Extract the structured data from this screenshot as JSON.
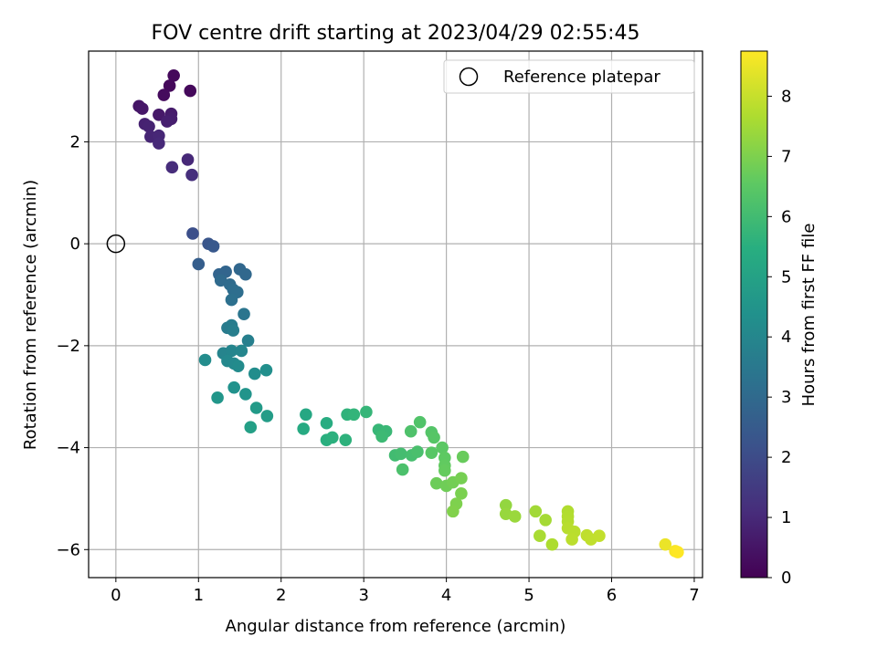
{
  "chart_data": {
    "type": "scatter",
    "title": "FOV centre drift starting at 2023/04/29 02:55:45",
    "xlabel": "Angular distance from reference (arcmin)",
    "ylabel": "Rotation from reference (arcmin)",
    "xlim": [
      -0.33,
      7.1
    ],
    "ylim": [
      -6.55,
      3.78
    ],
    "xticks": [
      0,
      1,
      2,
      3,
      4,
      5,
      6,
      7
    ],
    "xtick_labels": [
      "0",
      "1",
      "2",
      "3",
      "4",
      "5",
      "6",
      "7"
    ],
    "yticks": [
      2,
      0,
      -2,
      -4,
      -6
    ],
    "ytick_labels": [
      "2",
      "0",
      "−2",
      "−4",
      "−6"
    ],
    "grid": true,
    "legend": {
      "position": "upper-right",
      "entries": [
        "Reference platepar"
      ]
    },
    "reference_point": {
      "x": 0,
      "y": 0,
      "label": "Reference platepar"
    },
    "colorbar": {
      "label": "Hours from first FF file",
      "range": [
        0,
        8.75
      ],
      "ticks": [
        0,
        1,
        2,
        3,
        4,
        5,
        6,
        7,
        8
      ],
      "tick_labels": [
        "0",
        "1",
        "2",
        "3",
        "4",
        "5",
        "6",
        "7",
        "8"
      ],
      "colormap": "viridis"
    },
    "points": [
      {
        "x": 0.7,
        "y": 3.3,
        "h": 0.2
      },
      {
        "x": 0.65,
        "y": 3.1,
        "h": 0.2
      },
      {
        "x": 0.9,
        "y": 3.0,
        "h": 0.2
      },
      {
        "x": 0.58,
        "y": 2.92,
        "h": 0.25
      },
      {
        "x": 0.28,
        "y": 2.7,
        "h": 0.5
      },
      {
        "x": 0.32,
        "y": 2.65,
        "h": 0.55
      },
      {
        "x": 0.52,
        "y": 2.53,
        "h": 0.6
      },
      {
        "x": 0.67,
        "y": 2.55,
        "h": 0.65
      },
      {
        "x": 0.67,
        "y": 2.45,
        "h": 0.7
      },
      {
        "x": 0.62,
        "y": 2.4,
        "h": 0.75
      },
      {
        "x": 0.35,
        "y": 2.35,
        "h": 0.8
      },
      {
        "x": 0.4,
        "y": 2.3,
        "h": 0.85
      },
      {
        "x": 0.42,
        "y": 2.1,
        "h": 0.9
      },
      {
        "x": 0.52,
        "y": 2.12,
        "h": 0.95
      },
      {
        "x": 0.52,
        "y": 1.97,
        "h": 1.0
      },
      {
        "x": 0.87,
        "y": 1.65,
        "h": 1.0
      },
      {
        "x": 0.68,
        "y": 1.5,
        "h": 1.1
      },
      {
        "x": 0.92,
        "y": 1.35,
        "h": 1.15
      },
      {
        "x": 0.93,
        "y": 0.2,
        "h": 2.1
      },
      {
        "x": 1.12,
        "y": 0.0,
        "h": 2.3
      },
      {
        "x": 1.18,
        "y": -0.05,
        "h": 2.4
      },
      {
        "x": 1.0,
        "y": -0.4,
        "h": 2.6
      },
      {
        "x": 1.25,
        "y": -0.6,
        "h": 2.8
      },
      {
        "x": 1.33,
        "y": -0.55,
        "h": 2.85
      },
      {
        "x": 1.5,
        "y": -0.5,
        "h": 2.9
      },
      {
        "x": 1.57,
        "y": -0.6,
        "h": 2.95
      },
      {
        "x": 1.27,
        "y": -0.72,
        "h": 3.0
      },
      {
        "x": 1.38,
        "y": -0.8,
        "h": 3.05
      },
      {
        "x": 1.42,
        "y": -0.9,
        "h": 3.1
      },
      {
        "x": 1.47,
        "y": -0.95,
        "h": 3.15
      },
      {
        "x": 1.4,
        "y": -1.1,
        "h": 3.2
      },
      {
        "x": 1.55,
        "y": -1.38,
        "h": 3.4
      },
      {
        "x": 1.35,
        "y": -1.65,
        "h": 3.6
      },
      {
        "x": 1.4,
        "y": -1.6,
        "h": 3.65
      },
      {
        "x": 1.42,
        "y": -1.7,
        "h": 3.7
      },
      {
        "x": 1.6,
        "y": -1.9,
        "h": 3.75
      },
      {
        "x": 1.3,
        "y": -2.15,
        "h": 3.9
      },
      {
        "x": 1.4,
        "y": -2.1,
        "h": 3.95
      },
      {
        "x": 1.52,
        "y": -2.1,
        "h": 4.0
      },
      {
        "x": 1.35,
        "y": -2.3,
        "h": 4.05
      },
      {
        "x": 1.43,
        "y": -2.35,
        "h": 4.1
      },
      {
        "x": 1.48,
        "y": -2.4,
        "h": 4.15
      },
      {
        "x": 1.08,
        "y": -2.28,
        "h": 4.2
      },
      {
        "x": 1.68,
        "y": -2.55,
        "h": 4.25
      },
      {
        "x": 1.82,
        "y": -2.48,
        "h": 4.3
      },
      {
        "x": 1.43,
        "y": -2.82,
        "h": 4.4
      },
      {
        "x": 1.57,
        "y": -2.95,
        "h": 4.5
      },
      {
        "x": 1.23,
        "y": -3.02,
        "h": 4.55
      },
      {
        "x": 1.7,
        "y": -3.22,
        "h": 4.7
      },
      {
        "x": 1.83,
        "y": -3.38,
        "h": 4.8
      },
      {
        "x": 1.63,
        "y": -3.6,
        "h": 4.9
      },
      {
        "x": 2.3,
        "y": -3.35,
        "h": 5.2
      },
      {
        "x": 2.27,
        "y": -3.63,
        "h": 5.3
      },
      {
        "x": 2.55,
        "y": -3.52,
        "h": 5.4
      },
      {
        "x": 2.55,
        "y": -3.85,
        "h": 5.5
      },
      {
        "x": 2.62,
        "y": -3.8,
        "h": 5.55
      },
      {
        "x": 2.78,
        "y": -3.85,
        "h": 5.6
      },
      {
        "x": 2.8,
        "y": -3.35,
        "h": 5.65
      },
      {
        "x": 2.88,
        "y": -3.35,
        "h": 5.7
      },
      {
        "x": 3.03,
        "y": -3.3,
        "h": 5.75
      },
      {
        "x": 3.18,
        "y": -3.65,
        "h": 5.8
      },
      {
        "x": 3.27,
        "y": -3.68,
        "h": 5.85
      },
      {
        "x": 3.22,
        "y": -3.78,
        "h": 5.9
      },
      {
        "x": 3.38,
        "y": -4.15,
        "h": 6.0
      },
      {
        "x": 3.45,
        "y": -4.12,
        "h": 6.05
      },
      {
        "x": 3.58,
        "y": -4.15,
        "h": 6.1
      },
      {
        "x": 3.65,
        "y": -4.08,
        "h": 6.15
      },
      {
        "x": 3.47,
        "y": -4.43,
        "h": 6.2
      },
      {
        "x": 3.57,
        "y": -3.68,
        "h": 6.25
      },
      {
        "x": 3.68,
        "y": -3.5,
        "h": 6.3
      },
      {
        "x": 3.82,
        "y": -3.7,
        "h": 6.35
      },
      {
        "x": 3.85,
        "y": -3.8,
        "h": 6.4
      },
      {
        "x": 3.82,
        "y": -4.1,
        "h": 6.45
      },
      {
        "x": 3.95,
        "y": -4.0,
        "h": 6.5
      },
      {
        "x": 3.98,
        "y": -4.2,
        "h": 6.55
      },
      {
        "x": 3.98,
        "y": -4.35,
        "h": 6.6
      },
      {
        "x": 3.98,
        "y": -4.45,
        "h": 6.65
      },
      {
        "x": 4.2,
        "y": -4.18,
        "h": 6.7
      },
      {
        "x": 3.88,
        "y": -4.7,
        "h": 6.75
      },
      {
        "x": 4.0,
        "y": -4.75,
        "h": 6.8
      },
      {
        "x": 4.08,
        "y": -4.68,
        "h": 6.85
      },
      {
        "x": 4.18,
        "y": -4.6,
        "h": 6.9
      },
      {
        "x": 4.18,
        "y": -4.9,
        "h": 6.95
      },
      {
        "x": 4.12,
        "y": -5.1,
        "h": 7.0
      },
      {
        "x": 4.08,
        "y": -5.25,
        "h": 7.05
      },
      {
        "x": 4.72,
        "y": -5.13,
        "h": 7.3
      },
      {
        "x": 4.72,
        "y": -5.3,
        "h": 7.35
      },
      {
        "x": 4.83,
        "y": -5.35,
        "h": 7.4
      },
      {
        "x": 5.08,
        "y": -5.25,
        "h": 7.5
      },
      {
        "x": 5.2,
        "y": -5.42,
        "h": 7.55
      },
      {
        "x": 5.13,
        "y": -5.73,
        "h": 7.6
      },
      {
        "x": 5.28,
        "y": -5.9,
        "h": 7.65
      },
      {
        "x": 5.47,
        "y": -5.25,
        "h": 7.7
      },
      {
        "x": 5.47,
        "y": -5.35,
        "h": 7.72
      },
      {
        "x": 5.47,
        "y": -5.45,
        "h": 7.75
      },
      {
        "x": 5.47,
        "y": -5.58,
        "h": 7.8
      },
      {
        "x": 5.55,
        "y": -5.65,
        "h": 7.82
      },
      {
        "x": 5.52,
        "y": -5.8,
        "h": 7.85
      },
      {
        "x": 5.7,
        "y": -5.72,
        "h": 7.9
      },
      {
        "x": 5.75,
        "y": -5.8,
        "h": 7.92
      },
      {
        "x": 5.85,
        "y": -5.73,
        "h": 7.95
      },
      {
        "x": 6.65,
        "y": -5.9,
        "h": 8.5
      },
      {
        "x": 6.77,
        "y": -6.03,
        "h": 8.7
      },
      {
        "x": 6.8,
        "y": -6.05,
        "h": 8.75
      }
    ]
  }
}
